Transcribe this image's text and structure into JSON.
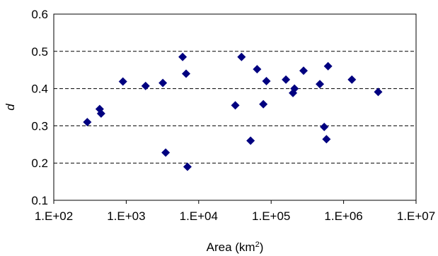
{
  "chart_data": {
    "type": "scatter",
    "title": "",
    "xlabel_main": "Area (km",
    "xlabel_sup": "2",
    "xlabel_end": ")",
    "ylabel": "d",
    "x_scale": "log",
    "xlim": [
      100,
      10000000
    ],
    "ylim": [
      0.1,
      0.6
    ],
    "x_ticks": [
      100,
      1000,
      10000,
      100000,
      1000000,
      10000000
    ],
    "x_tick_labels": [
      "1.E+02",
      "1.E+03",
      "1.E+04",
      "1.E+05",
      "1.E+06",
      "1.E+07"
    ],
    "y_ticks": [
      0.1,
      0.2,
      0.3,
      0.4,
      0.5,
      0.6
    ],
    "y_tick_labels": [
      "0.1",
      "0.2",
      "0.3",
      "0.4",
      "0.5",
      "0.6"
    ],
    "grid": "horizontal dashed",
    "marker": "diamond",
    "marker_color": "#000080",
    "series": [
      {
        "points": [
          {
            "x": 290,
            "y": 0.31
          },
          {
            "x": 430,
            "y": 0.345
          },
          {
            "x": 450,
            "y": 0.333
          },
          {
            "x": 900,
            "y": 0.419
          },
          {
            "x": 1850,
            "y": 0.407
          },
          {
            "x": 3200,
            "y": 0.415
          },
          {
            "x": 3500,
            "y": 0.228
          },
          {
            "x": 6000,
            "y": 0.485
          },
          {
            "x": 6700,
            "y": 0.44
          },
          {
            "x": 7000,
            "y": 0.19
          },
          {
            "x": 32000,
            "y": 0.355
          },
          {
            "x": 39000,
            "y": 0.485
          },
          {
            "x": 52000,
            "y": 0.26
          },
          {
            "x": 64000,
            "y": 0.452
          },
          {
            "x": 78000,
            "y": 0.358
          },
          {
            "x": 86000,
            "y": 0.42
          },
          {
            "x": 160000,
            "y": 0.424
          },
          {
            "x": 200000,
            "y": 0.388
          },
          {
            "x": 210000,
            "y": 0.4
          },
          {
            "x": 280000,
            "y": 0.448
          },
          {
            "x": 470000,
            "y": 0.412
          },
          {
            "x": 540000,
            "y": 0.297
          },
          {
            "x": 580000,
            "y": 0.264
          },
          {
            "x": 610000,
            "y": 0.46
          },
          {
            "x": 1300000,
            "y": 0.424
          },
          {
            "x": 3000000,
            "y": 0.391
          }
        ]
      }
    ]
  }
}
